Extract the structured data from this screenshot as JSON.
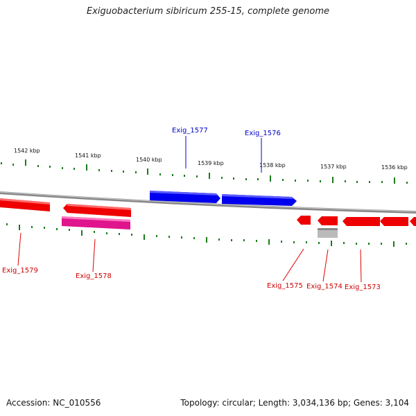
{
  "title": "Exiguobacterium sibiricum 255-15, complete genome",
  "footer": {
    "accession": "Accession: NC_010556",
    "summary": "Topology: circular; Length: 3,034,136 bp; Genes: 3,104"
  },
  "colors": {
    "forward_gene": "#0000ee",
    "reverse_gene": "#ee0000",
    "reverse_gene_alt": "#e0148c",
    "pseudo_gene": "#bbbbbb",
    "ticks": "#1a7a1a",
    "backbone": "#888888"
  },
  "ruler_labels": [
    "1542 kbp",
    "1541 kbp",
    "1540 kbp",
    "1539 kbp",
    "1538 kbp",
    "1537 kbp",
    "1536 kbp"
  ],
  "genes": [
    {
      "label": "Exig_1577",
      "strand": "forward"
    },
    {
      "label": "Exig_1576",
      "strand": "forward"
    },
    {
      "label": "Exig_1579",
      "strand": "reverse"
    },
    {
      "label": "Exig_1578",
      "strand": "reverse"
    },
    {
      "label": "Exig_1575",
      "strand": "reverse"
    },
    {
      "label": "Exig_1574",
      "strand": "reverse"
    },
    {
      "label": "Exig_1573",
      "strand": "reverse"
    }
  ]
}
